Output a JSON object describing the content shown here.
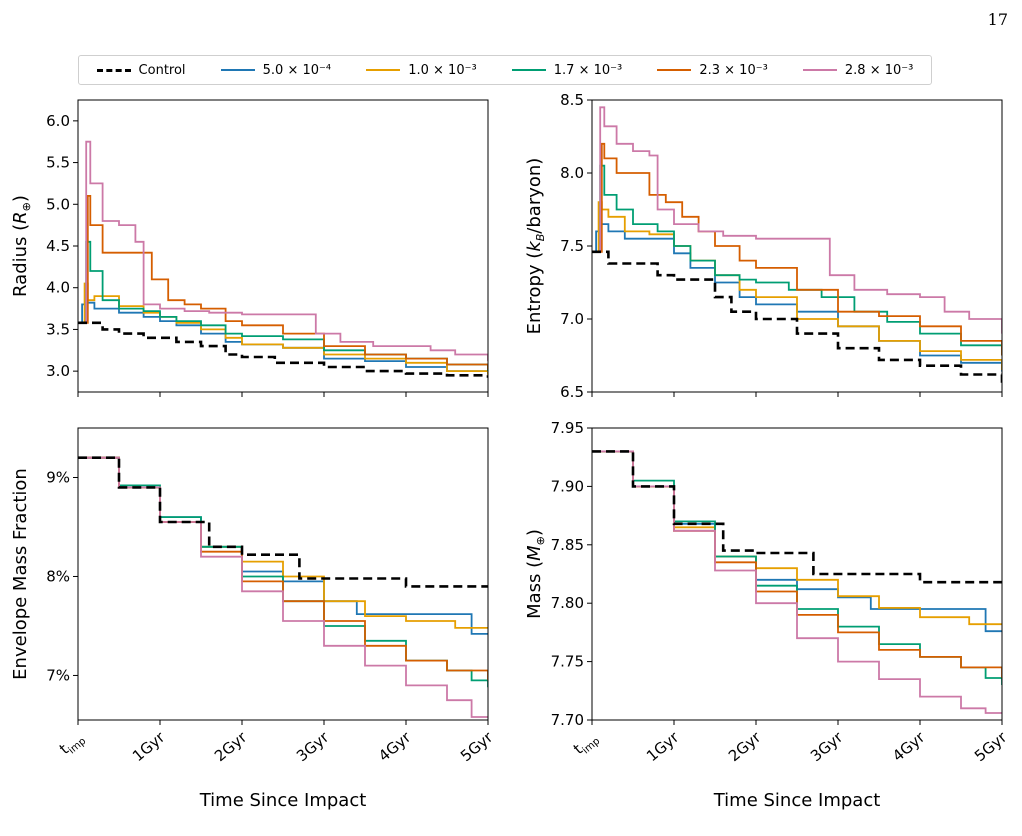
{
  "page_number": "17",
  "legend": [
    {
      "label": "Control",
      "color": "#000000",
      "dash": true
    },
    {
      "label": "5.0 × 10⁻⁴",
      "color": "#1f77b4",
      "dash": false
    },
    {
      "label": "1.0 × 10⁻³",
      "color": "#e69f00",
      "dash": false
    },
    {
      "label": "1.7 × 10⁻³",
      "color": "#009e73",
      "dash": false
    },
    {
      "label": "2.3 × 10⁻³",
      "color": "#d55e00",
      "dash": false
    },
    {
      "label": "2.8 × 10⁻³",
      "color": "#cc79a7",
      "dash": false
    }
  ],
  "chart_data": [
    {
      "type": "line",
      "panel": "top-left",
      "ylabel": "Radius (R⊕)",
      "xlabel": "",
      "xlim": [
        0,
        5
      ],
      "ylim": [
        2.75,
        6.25
      ],
      "yticks": [
        3.0,
        3.5,
        4.0,
        4.5,
        5.0,
        5.5,
        6.0
      ],
      "ytick_labels": [
        "3.0",
        "3.5",
        "4.0",
        "4.5",
        "5.0",
        "5.5",
        "6.0"
      ],
      "xticks": [
        0,
        1,
        2,
        3,
        4,
        5
      ],
      "xtick_labels": [],
      "step": true,
      "series": [
        {
          "name": "Control",
          "color": "#000000",
          "dash": true,
          "x": [
            0,
            0.08,
            0.3,
            0.5,
            0.8,
            1.0,
            1.2,
            1.5,
            1.8,
            2.0,
            2.4,
            3.0,
            3.5,
            4.0,
            4.5,
            5.0
          ],
          "y": [
            3.58,
            3.58,
            3.5,
            3.45,
            3.4,
            3.4,
            3.35,
            3.3,
            3.2,
            3.17,
            3.1,
            3.05,
            3.0,
            2.97,
            2.95,
            2.92
          ]
        },
        {
          "name": "5.0 × 10⁻⁴",
          "color": "#1f77b4",
          "dash": false,
          "x": [
            0,
            0.05,
            0.1,
            0.2,
            0.5,
            0.8,
            1.0,
            1.2,
            1.5,
            1.8,
            2.0,
            2.5,
            3.0,
            3.5,
            4.0,
            4.5,
            5.0
          ],
          "y": [
            3.58,
            3.8,
            3.82,
            3.75,
            3.7,
            3.65,
            3.6,
            3.55,
            3.45,
            3.35,
            3.32,
            3.28,
            3.15,
            3.12,
            3.05,
            3.0,
            2.97
          ]
        },
        {
          "name": "1.0 × 10⁻³",
          "color": "#e69f00",
          "dash": false,
          "x": [
            0,
            0.08,
            0.12,
            0.2,
            0.5,
            0.8,
            1.0,
            1.2,
            1.5,
            1.8,
            2.0,
            2.5,
            3.0,
            3.5,
            4.0,
            4.5,
            5.0
          ],
          "y": [
            3.58,
            4.05,
            3.85,
            3.9,
            3.78,
            3.7,
            3.65,
            3.58,
            3.5,
            3.4,
            3.32,
            3.28,
            3.2,
            3.15,
            3.1,
            3.0,
            2.95
          ]
        },
        {
          "name": "1.7 × 10⁻³",
          "color": "#009e73",
          "dash": false,
          "x": [
            0,
            0.1,
            0.15,
            0.3,
            0.5,
            0.8,
            1.0,
            1.2,
            1.5,
            1.8,
            2.0,
            2.5,
            3.0,
            3.5,
            4.0,
            4.5,
            5.0
          ],
          "y": [
            3.58,
            4.55,
            4.2,
            3.85,
            3.75,
            3.72,
            3.65,
            3.6,
            3.55,
            3.45,
            3.42,
            3.38,
            3.25,
            3.2,
            3.15,
            3.08,
            3.0
          ]
        },
        {
          "name": "2.3 × 10⁻³",
          "color": "#d55e00",
          "dash": false,
          "x": [
            0,
            0.12,
            0.15,
            0.3,
            0.7,
            0.9,
            1.1,
            1.3,
            1.5,
            1.8,
            2.0,
            2.5,
            3.0,
            3.5,
            4.0,
            4.5,
            5.0
          ],
          "y": [
            3.58,
            5.1,
            4.75,
            4.42,
            4.42,
            4.1,
            3.85,
            3.8,
            3.75,
            3.6,
            3.55,
            3.45,
            3.3,
            3.2,
            3.15,
            3.08,
            3.02
          ]
        },
        {
          "name": "2.8 × 10⁻³",
          "color": "#cc79a7",
          "dash": false,
          "x": [
            0,
            0.1,
            0.15,
            0.3,
            0.5,
            0.7,
            0.8,
            1.0,
            1.3,
            1.6,
            2.0,
            2.5,
            2.9,
            3.2,
            3.6,
            4.0,
            4.3,
            4.6,
            5.0
          ],
          "y": [
            3.58,
            5.75,
            5.25,
            4.8,
            4.75,
            4.55,
            3.8,
            3.75,
            3.72,
            3.7,
            3.68,
            3.68,
            3.45,
            3.35,
            3.3,
            3.3,
            3.25,
            3.2,
            3.12
          ]
        }
      ]
    },
    {
      "type": "line",
      "panel": "top-right",
      "ylabel": "Entropy (kB/baryon)",
      "xlabel": "",
      "xlim": [
        0,
        5
      ],
      "ylim": [
        6.5,
        8.5
      ],
      "yticks": [
        6.5,
        7.0,
        7.5,
        8.0,
        8.5
      ],
      "ytick_labels": [
        "6.5",
        "7.0",
        "7.5",
        "8.0",
        "8.5"
      ],
      "xticks": [
        0,
        1,
        2,
        3,
        4,
        5
      ],
      "xtick_labels": [],
      "step": true,
      "series": [
        {
          "name": "Control",
          "color": "#000000",
          "dash": true,
          "x": [
            0,
            0.2,
            0.5,
            0.8,
            1.0,
            1.2,
            1.5,
            1.7,
            2.0,
            2.5,
            3.0,
            3.5,
            4.0,
            4.5,
            5.0
          ],
          "y": [
            7.46,
            7.38,
            7.38,
            7.3,
            7.27,
            7.27,
            7.15,
            7.05,
            7.0,
            6.9,
            6.8,
            6.72,
            6.68,
            6.62,
            6.56
          ]
        },
        {
          "name": "5.0 × 10⁻⁴",
          "color": "#1f77b4",
          "dash": false,
          "x": [
            0,
            0.05,
            0.1,
            0.2,
            0.4,
            0.7,
            1.0,
            1.2,
            1.5,
            1.8,
            2.0,
            2.5,
            3.0,
            3.5,
            4.0,
            4.5,
            5.0
          ],
          "y": [
            7.46,
            7.6,
            7.65,
            7.6,
            7.55,
            7.55,
            7.45,
            7.35,
            7.25,
            7.15,
            7.1,
            7.05,
            6.95,
            6.85,
            6.75,
            6.7,
            6.64
          ]
        },
        {
          "name": "1.0 × 10⁻³",
          "color": "#e69f00",
          "dash": false,
          "x": [
            0,
            0.08,
            0.12,
            0.2,
            0.4,
            0.7,
            1.0,
            1.2,
            1.5,
            1.8,
            2.0,
            2.5,
            3.0,
            3.5,
            4.0,
            4.5,
            5.0
          ],
          "y": [
            7.46,
            7.8,
            7.75,
            7.7,
            7.6,
            7.58,
            7.5,
            7.4,
            7.3,
            7.2,
            7.15,
            7.0,
            6.95,
            6.85,
            6.78,
            6.72,
            6.65
          ]
        },
        {
          "name": "1.7 × 10⁻³",
          "color": "#009e73",
          "dash": false,
          "x": [
            0,
            0.1,
            0.15,
            0.3,
            0.5,
            0.8,
            1.0,
            1.2,
            1.5,
            1.8,
            2.0,
            2.4,
            2.8,
            3.2,
            3.6,
            4.0,
            4.5,
            5.0
          ],
          "y": [
            7.46,
            8.05,
            7.85,
            7.75,
            7.65,
            7.6,
            7.5,
            7.4,
            7.3,
            7.27,
            7.25,
            7.2,
            7.15,
            7.05,
            6.98,
            6.9,
            6.82,
            6.75
          ]
        },
        {
          "name": "2.3 × 10⁻³",
          "color": "#d55e00",
          "dash": false,
          "x": [
            0,
            0.12,
            0.15,
            0.3,
            0.7,
            0.9,
            1.1,
            1.3,
            1.5,
            1.8,
            2.0,
            2.5,
            3.0,
            3.5,
            4.0,
            4.5,
            5.0
          ],
          "y": [
            7.46,
            8.2,
            8.1,
            8.0,
            7.85,
            7.8,
            7.7,
            7.6,
            7.5,
            7.4,
            7.35,
            7.2,
            7.05,
            7.02,
            6.95,
            6.85,
            6.75
          ]
        },
        {
          "name": "2.8 × 10⁻³",
          "color": "#cc79a7",
          "dash": false,
          "x": [
            0,
            0.1,
            0.15,
            0.3,
            0.5,
            0.7,
            0.8,
            1.0,
            1.3,
            1.6,
            2.0,
            2.5,
            2.9,
            3.2,
            3.6,
            4.0,
            4.3,
            4.6,
            5.0
          ],
          "y": [
            7.46,
            8.45,
            8.32,
            8.2,
            8.15,
            8.12,
            7.75,
            7.65,
            7.6,
            7.57,
            7.55,
            7.55,
            7.3,
            7.2,
            7.17,
            7.15,
            7.05,
            7.0,
            6.9
          ]
        }
      ]
    },
    {
      "type": "line",
      "panel": "bottom-left",
      "ylabel": "Envelope Mass Fraction",
      "xlabel": "Time Since Impact",
      "xlim": [
        0,
        5
      ],
      "ylim": [
        6.55,
        9.5
      ],
      "yticks": [
        7,
        8,
        9
      ],
      "ytick_labels": [
        "7%",
        "8%",
        "9%"
      ],
      "xticks": [
        0,
        1,
        2,
        3,
        4,
        5
      ],
      "xtick_labels": [
        "t_imp",
        "1Gyr",
        "2Gyr",
        "3Gyr",
        "4Gyr",
        "5Gyr"
      ],
      "step": true,
      "series": [
        {
          "name": "Control",
          "color": "#000000",
          "dash": true,
          "x": [
            0,
            0.5,
            1.0,
            1.6,
            2.0,
            2.3,
            2.7,
            3.2,
            3.8,
            4.0,
            5.0
          ],
          "y": [
            9.2,
            8.9,
            8.55,
            8.3,
            8.22,
            8.22,
            7.98,
            7.98,
            7.98,
            7.9,
            7.9
          ]
        },
        {
          "name": "5.0 × 10⁻⁴",
          "color": "#1f77b4",
          "dash": false,
          "x": [
            0,
            0.5,
            1.0,
            1.5,
            2.0,
            2.5,
            3.0,
            3.4,
            3.8,
            4.4,
            4.8,
            5.0
          ],
          "y": [
            9.2,
            8.9,
            8.6,
            8.3,
            8.05,
            7.95,
            7.75,
            7.62,
            7.62,
            7.62,
            7.42,
            7.42
          ]
        },
        {
          "name": "1.0 × 10⁻³",
          "color": "#e69f00",
          "dash": false,
          "x": [
            0,
            0.5,
            1.0,
            1.5,
            2.0,
            2.5,
            3.0,
            3.5,
            4.0,
            4.6,
            5.0
          ],
          "y": [
            9.2,
            8.9,
            8.55,
            8.3,
            8.15,
            8.0,
            7.75,
            7.6,
            7.55,
            7.48,
            7.48
          ]
        },
        {
          "name": "1.7 × 10⁻³",
          "color": "#009e73",
          "dash": false,
          "x": [
            0,
            0.5,
            1.0,
            1.5,
            2.0,
            2.5,
            3.0,
            3.5,
            4.0,
            4.5,
            4.8,
            5.0
          ],
          "y": [
            9.2,
            8.92,
            8.6,
            8.3,
            8.0,
            7.75,
            7.5,
            7.35,
            7.15,
            7.05,
            6.95,
            6.88
          ]
        },
        {
          "name": "2.3 × 10⁻³",
          "color": "#d55e00",
          "dash": false,
          "x": [
            0,
            0.5,
            1.0,
            1.5,
            2.0,
            2.5,
            3.0,
            3.5,
            4.0,
            4.5,
            5.0
          ],
          "y": [
            9.2,
            8.9,
            8.55,
            8.25,
            7.95,
            7.75,
            7.55,
            7.3,
            7.15,
            7.05,
            6.95
          ]
        },
        {
          "name": "2.8 × 10⁻³",
          "color": "#cc79a7",
          "dash": false,
          "x": [
            0,
            0.5,
            1.0,
            1.5,
            2.0,
            2.5,
            3.0,
            3.5,
            4.0,
            4.5,
            4.8,
            5.0
          ],
          "y": [
            9.2,
            8.9,
            8.55,
            8.2,
            7.85,
            7.55,
            7.3,
            7.1,
            6.9,
            6.75,
            6.58,
            6.58
          ]
        }
      ]
    },
    {
      "type": "line",
      "panel": "bottom-right",
      "ylabel": "Mass (M⊕)",
      "xlabel": "Time Since Impact",
      "xlim": [
        0,
        5
      ],
      "ylim": [
        7.7,
        7.95
      ],
      "yticks": [
        7.7,
        7.75,
        7.8,
        7.85,
        7.9,
        7.95
      ],
      "ytick_labels": [
        "7.70",
        "7.75",
        "7.80",
        "7.85",
        "7.90",
        "7.95"
      ],
      "xticks": [
        0,
        1,
        2,
        3,
        4,
        5
      ],
      "xtick_labels": [
        "t_imp",
        "1Gyr",
        "2Gyr",
        "3Gyr",
        "4Gyr",
        "5Gyr"
      ],
      "step": true,
      "series": [
        {
          "name": "Control",
          "color": "#000000",
          "dash": true,
          "x": [
            0,
            0.5,
            1.0,
            1.6,
            2.0,
            2.3,
            2.7,
            3.2,
            3.8,
            4.0,
            5.0
          ],
          "y": [
            7.93,
            7.9,
            7.868,
            7.845,
            7.843,
            7.843,
            7.825,
            7.825,
            7.825,
            7.818,
            7.818
          ]
        },
        {
          "name": "5.0 × 10⁻⁴",
          "color": "#1f77b4",
          "dash": false,
          "x": [
            0,
            0.5,
            1.0,
            1.5,
            2.0,
            2.5,
            3.0,
            3.4,
            3.8,
            4.4,
            4.8,
            5.0
          ],
          "y": [
            7.93,
            7.9,
            7.868,
            7.84,
            7.82,
            7.812,
            7.805,
            7.795,
            7.795,
            7.795,
            7.776,
            7.776
          ]
        },
        {
          "name": "1.0 × 10⁻³",
          "color": "#e69f00",
          "dash": false,
          "x": [
            0,
            0.5,
            1.0,
            1.5,
            2.0,
            2.5,
            3.0,
            3.5,
            4.0,
            4.6,
            5.0
          ],
          "y": [
            7.93,
            7.9,
            7.865,
            7.84,
            7.83,
            7.82,
            7.806,
            7.796,
            7.788,
            7.782,
            7.782
          ]
        },
        {
          "name": "1.7 × 10⁻³",
          "color": "#009e73",
          "dash": false,
          "x": [
            0,
            0.5,
            1.0,
            1.5,
            2.0,
            2.5,
            3.0,
            3.5,
            4.0,
            4.5,
            4.8,
            5.0
          ],
          "y": [
            7.93,
            7.905,
            7.87,
            7.84,
            7.815,
            7.795,
            7.78,
            7.765,
            7.754,
            7.745,
            7.736,
            7.73
          ]
        },
        {
          "name": "2.3 × 10⁻³",
          "color": "#d55e00",
          "dash": false,
          "x": [
            0,
            0.5,
            1.0,
            1.5,
            2.0,
            2.5,
            3.0,
            3.5,
            4.0,
            4.5,
            5.0
          ],
          "y": [
            7.93,
            7.9,
            7.862,
            7.835,
            7.81,
            7.79,
            7.775,
            7.76,
            7.754,
            7.745,
            7.736
          ]
        },
        {
          "name": "2.8 × 10⁻³",
          "color": "#cc79a7",
          "dash": false,
          "x": [
            0,
            0.5,
            1.0,
            1.5,
            2.0,
            2.5,
            3.0,
            3.5,
            4.0,
            4.5,
            4.8,
            5.0
          ],
          "y": [
            7.93,
            7.9,
            7.862,
            7.828,
            7.8,
            7.77,
            7.75,
            7.735,
            7.72,
            7.71,
            7.706,
            7.706
          ]
        }
      ]
    }
  ]
}
